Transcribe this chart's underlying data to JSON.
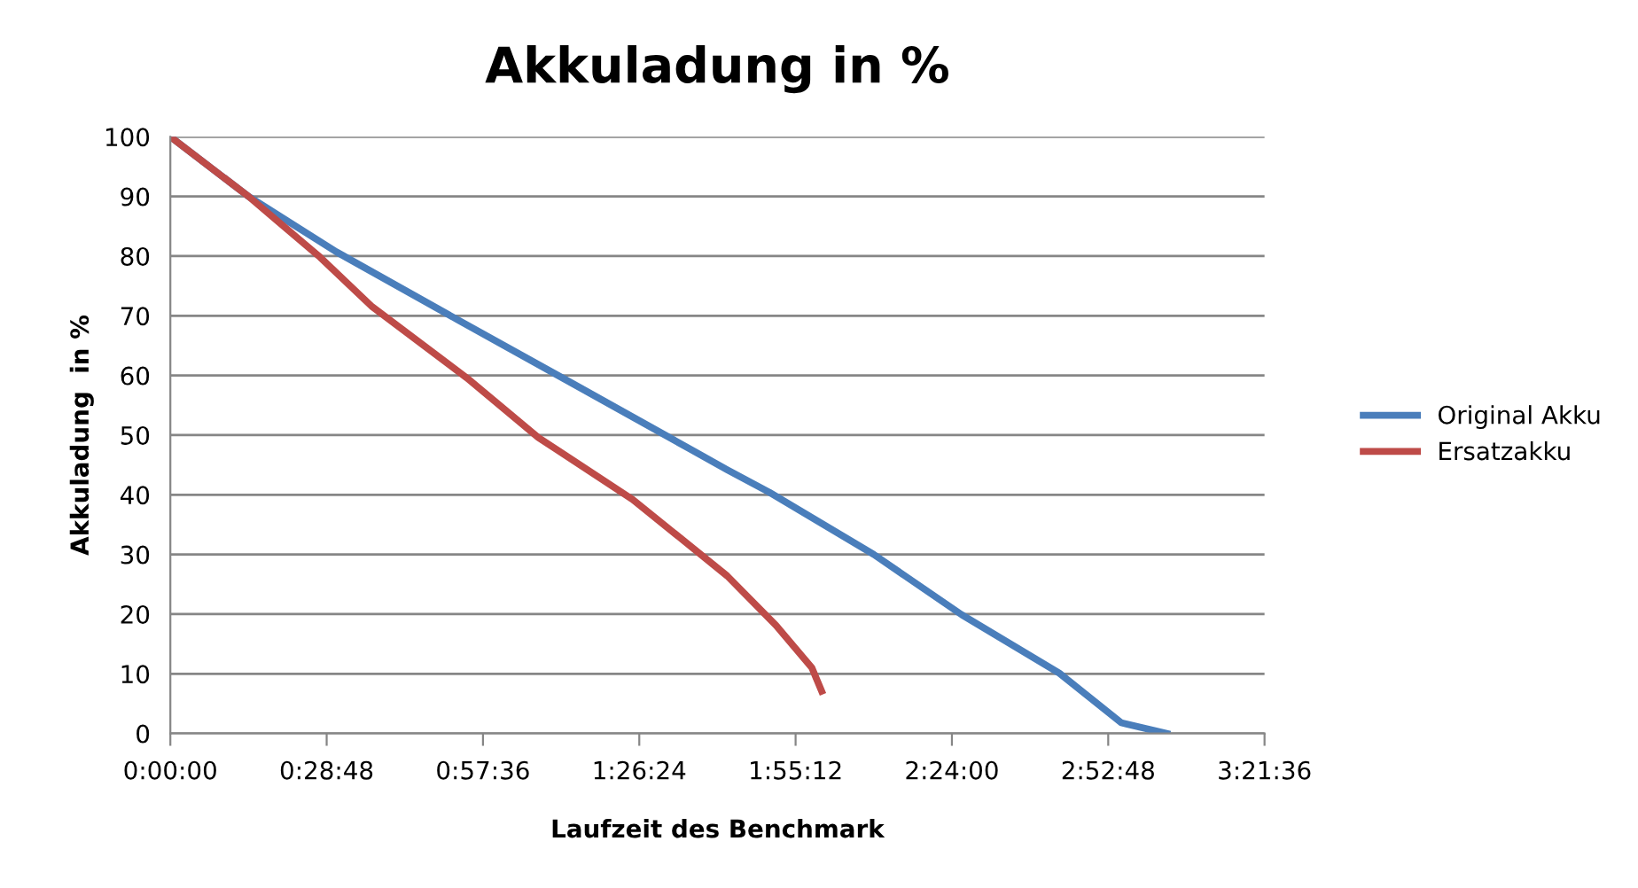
{
  "chart_data": {
    "type": "line",
    "title": "Akkuladung in %",
    "xlabel": "Laufzeit des Benchmark",
    "ylabel": "Akkuladung  in %",
    "xlim": [
      0,
      3.36
    ],
    "xticks": [
      {
        "value": 0,
        "label": "0:00:00"
      },
      {
        "value": 0.48,
        "label": "0:28:48"
      },
      {
        "value": 0.96,
        "label": "0:57:36"
      },
      {
        "value": 1.44,
        "label": "1:26:24"
      },
      {
        "value": 1.92,
        "label": "1:55:12"
      },
      {
        "value": 2.4,
        "label": "2:24:00"
      },
      {
        "value": 2.88,
        "label": "2:52:48"
      },
      {
        "value": 3.36,
        "label": "3:21:36"
      }
    ],
    "ylim": [
      0,
      100
    ],
    "yticks": [
      0,
      10,
      20,
      30,
      40,
      50,
      60,
      70,
      80,
      90,
      100
    ],
    "grid": "y",
    "legend": "right",
    "marker": "none",
    "line_style": "solid",
    "series": [
      {
        "name": "Original Akku",
        "color": "#4a7ebb",
        "x": [
          0,
          0.24,
          0.51,
          0.88,
          1.24,
          1.71,
          1.84,
          2.16,
          2.43,
          2.73,
          2.92,
          3.06
        ],
        "values": [
          100,
          90,
          80.7,
          69.4,
          58.5,
          44.2,
          40.4,
          30,
          19.9,
          10.1,
          1.8,
          0
        ]
      },
      {
        "name": "Ersatzakku",
        "color": "#be4b48",
        "x": [
          0,
          0.24,
          0.46,
          0.62,
          0.91,
          1.13,
          1.42,
          1.71,
          1.86,
          1.97,
          2.0
        ],
        "values": [
          100,
          90,
          79.8,
          71.5,
          59.6,
          49.6,
          39.2,
          26.4,
          18.1,
          11,
          7.1
        ]
      }
    ]
  }
}
